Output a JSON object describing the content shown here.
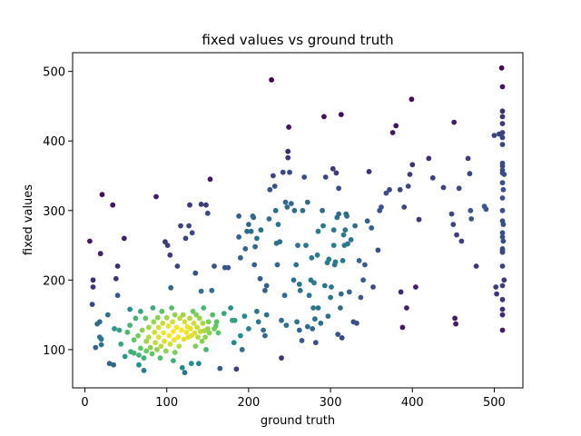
{
  "chart_data": {
    "type": "scatter",
    "title": "fixed values vs ground truth",
    "xlabel": "ground truth",
    "ylabel": "fixed values",
    "xlim": [
      -15,
      535
    ],
    "ylim": [
      45,
      527
    ],
    "xticks": [
      0,
      100,
      200,
      300,
      400,
      500
    ],
    "yticks": [
      100,
      200,
      300,
      400,
      500
    ],
    "grid": false,
    "colormap": "viridis",
    "colormap_stops": [
      "#440154",
      "#3b528b",
      "#21918c",
      "#5ec962",
      "#fde725"
    ],
    "color_encoding": "point density",
    "points": [
      [
        6,
        256
      ],
      [
        10,
        200
      ],
      [
        10,
        190
      ],
      [
        9,
        165
      ],
      [
        13,
        103
      ],
      [
        15,
        137
      ],
      [
        18,
        140
      ],
      [
        18,
        118
      ],
      [
        20,
        115
      ],
      [
        20,
        107
      ],
      [
        21,
        323
      ],
      [
        19,
        238
      ],
      [
        28,
        150
      ],
      [
        30,
        80
      ],
      [
        34,
        308
      ],
      [
        35,
        78
      ],
      [
        36,
        130
      ],
      [
        38,
        202
      ],
      [
        40,
        220
      ],
      [
        40,
        178
      ],
      [
        42,
        128
      ],
      [
        44,
        108
      ],
      [
        48,
        260
      ],
      [
        49,
        90
      ],
      [
        52,
        125
      ],
      [
        55,
        158
      ],
      [
        55,
        135
      ],
      [
        56,
        97
      ],
      [
        60,
        114
      ],
      [
        60,
        95
      ],
      [
        62,
        145
      ],
      [
        65,
        120
      ],
      [
        66,
        92
      ],
      [
        66,
        78
      ],
      [
        68,
        102
      ],
      [
        68,
        155
      ],
      [
        70,
        128
      ],
      [
        72,
        70
      ],
      [
        72,
        88
      ],
      [
        74,
        145
      ],
      [
        75,
        112
      ],
      [
        75,
        98
      ],
      [
        78,
        132
      ],
      [
        78,
        118
      ],
      [
        80,
        103
      ],
      [
        82,
        94
      ],
      [
        83,
        160
      ],
      [
        84,
        140
      ],
      [
        85,
        125
      ],
      [
        86,
        110
      ],
      [
        87,
        320
      ],
      [
        88,
        100
      ],
      [
        89,
        146
      ],
      [
        90,
        132
      ],
      [
        90,
        118
      ],
      [
        92,
        88
      ],
      [
        93,
        105
      ],
      [
        94,
        155
      ],
      [
        95,
        138
      ],
      [
        96,
        124
      ],
      [
        97,
        112
      ],
      [
        98,
        255
      ],
      [
        99,
        98
      ],
      [
        100,
        146
      ],
      [
        101,
        250
      ],
      [
        102,
        134
      ],
      [
        103,
        120
      ],
      [
        104,
        236
      ],
      [
        104,
        108
      ],
      [
        105,
        189
      ],
      [
        106,
        160
      ],
      [
        107,
        140
      ],
      [
        108,
        126
      ],
      [
        108,
        84
      ],
      [
        109,
        114
      ],
      [
        110,
        150
      ],
      [
        110,
        96
      ],
      [
        112,
        132
      ],
      [
        113,
        220
      ],
      [
        114,
        118
      ],
      [
        115,
        105
      ],
      [
        116,
        145
      ],
      [
        117,
        278
      ],
      [
        118,
        128
      ],
      [
        119,
        74
      ],
      [
        120,
        150
      ],
      [
        121,
        115
      ],
      [
        122,
        140
      ],
      [
        122,
        67
      ],
      [
        123,
        260
      ],
      [
        124,
        125
      ],
      [
        125,
        133
      ],
      [
        126,
        118
      ],
      [
        127,
        278
      ],
      [
        128,
        145
      ],
      [
        128,
        308
      ],
      [
        129,
        130
      ],
      [
        130,
        120
      ],
      [
        130,
        80
      ],
      [
        131,
        268
      ],
      [
        132,
        155
      ],
      [
        133,
        138
      ],
      [
        134,
        124
      ],
      [
        135,
        210
      ],
      [
        135,
        105
      ],
      [
        136,
        150
      ],
      [
        137,
        132
      ],
      [
        138,
        118
      ],
      [
        139,
        80
      ],
      [
        140,
        145
      ],
      [
        141,
        126
      ],
      [
        142,
        309
      ],
      [
        142,
        184
      ],
      [
        143,
        112
      ],
      [
        144,
        138
      ],
      [
        145,
        160
      ],
      [
        146,
        127
      ],
      [
        147,
        118
      ],
      [
        148,
        100
      ],
      [
        148,
        308
      ],
      [
        150,
        296
      ],
      [
        150,
        130
      ],
      [
        151,
        140
      ],
      [
        152,
        124
      ],
      [
        153,
        345
      ],
      [
        155,
        185
      ],
      [
        156,
        150
      ],
      [
        158,
        220
      ],
      [
        158,
        130
      ],
      [
        160,
        134
      ],
      [
        161,
        140
      ],
      [
        163,
        124
      ],
      [
        165,
        73
      ],
      [
        170,
        152
      ],
      [
        171,
        218
      ],
      [
        175,
        218
      ],
      [
        178,
        160
      ],
      [
        180,
        142
      ],
      [
        182,
        110
      ],
      [
        183,
        142
      ],
      [
        185,
        72
      ],
      [
        188,
        262
      ],
      [
        188,
        292
      ],
      [
        190,
        232
      ],
      [
        190,
        120
      ],
      [
        192,
        100
      ],
      [
        195,
        148
      ],
      [
        196,
        245
      ],
      [
        198,
        270
      ],
      [
        200,
        280
      ],
      [
        200,
        130
      ],
      [
        203,
        270
      ],
      [
        205,
        292
      ],
      [
        206,
        290
      ],
      [
        207,
        222
      ],
      [
        208,
        248
      ],
      [
        210,
        155
      ],
      [
        210,
        260
      ],
      [
        212,
        140
      ],
      [
        214,
        202
      ],
      [
        215,
        272
      ],
      [
        218,
        128
      ],
      [
        220,
        185
      ],
      [
        220,
        120
      ],
      [
        222,
        192
      ],
      [
        222,
        150
      ],
      [
        225,
        288
      ],
      [
        226,
        330
      ],
      [
        228,
        488
      ],
      [
        230,
        350
      ],
      [
        232,
        335
      ],
      [
        233,
        300
      ],
      [
        234,
        253
      ],
      [
        235,
        222
      ],
      [
        236,
        280
      ],
      [
        238,
        255
      ],
      [
        240,
        142
      ],
      [
        240,
        88
      ],
      [
        242,
        355
      ],
      [
        244,
        178
      ],
      [
        245,
        312
      ],
      [
        246,
        135
      ],
      [
        247,
        305
      ],
      [
        248,
        385
      ],
      [
        248,
        376
      ],
      [
        249,
        420
      ],
      [
        250,
        355
      ],
      [
        252,
        310
      ],
      [
        255,
        200
      ],
      [
        256,
        300
      ],
      [
        258,
        222
      ],
      [
        259,
        140
      ],
      [
        260,
        250
      ],
      [
        262,
        128
      ],
      [
        262,
        194
      ],
      [
        263,
        185
      ],
      [
        265,
        113
      ],
      [
        266,
        300
      ],
      [
        268,
        348
      ],
      [
        270,
        250
      ],
      [
        272,
        133
      ],
      [
        272,
        312
      ],
      [
        274,
        178
      ],
      [
        276,
        200
      ],
      [
        277,
        232
      ],
      [
        278,
        130
      ],
      [
        279,
        160
      ],
      [
        280,
        196
      ],
      [
        281,
        144
      ],
      [
        282,
        110
      ],
      [
        284,
        236
      ],
      [
        285,
        160
      ],
      [
        285,
        270
      ],
      [
        288,
        138
      ],
      [
        290,
        300
      ],
      [
        291,
        278
      ],
      [
        292,
        435
      ],
      [
        293,
        192
      ],
      [
        294,
        348
      ],
      [
        296,
        225
      ],
      [
        297,
        148
      ],
      [
        298,
        230
      ],
      [
        300,
        175
      ],
      [
        301,
        190
      ],
      [
        303,
        360
      ],
      [
        304,
        250
      ],
      [
        304,
        272
      ],
      [
        305,
        222
      ],
      [
        306,
        226
      ],
      [
        307,
        354
      ],
      [
        308,
        290
      ],
      [
        309,
        122
      ],
      [
        310,
        295
      ],
      [
        310,
        332
      ],
      [
        312,
        160
      ],
      [
        313,
        438
      ],
      [
        313,
        180
      ],
      [
        314,
        117
      ],
      [
        315,
        228
      ],
      [
        316,
        265
      ],
      [
        317,
        250
      ],
      [
        318,
        272
      ],
      [
        319,
        295
      ],
      [
        320,
        292
      ],
      [
        321,
        252
      ],
      [
        323,
        183
      ],
      [
        325,
        258
      ],
      [
        328,
        140
      ],
      [
        330,
        278
      ],
      [
        332,
        138
      ],
      [
        335,
        228
      ],
      [
        337,
        175
      ],
      [
        340,
        200
      ],
      [
        342,
        222
      ],
      [
        345,
        285
      ],
      [
        347,
        356
      ],
      [
        350,
        275
      ],
      [
        352,
        190
      ],
      [
        358,
        243
      ],
      [
        360,
        300
      ],
      [
        362,
        305
      ],
      [
        368,
        325
      ],
      [
        372,
        330
      ],
      [
        376,
        412
      ],
      [
        380,
        422
      ],
      [
        385,
        330
      ],
      [
        386,
        183
      ],
      [
        390,
        305
      ],
      [
        388,
        132
      ],
      [
        393,
        160
      ],
      [
        395,
        335
      ],
      [
        397,
        352
      ],
      [
        399,
        460
      ],
      [
        400,
        366
      ],
      [
        404,
        190
      ],
      [
        408,
        287
      ],
      [
        420,
        375
      ],
      [
        425,
        347
      ],
      [
        438,
        333
      ],
      [
        448,
        295
      ],
      [
        450,
        280
      ],
      [
        451,
        427
      ],
      [
        452,
        145
      ],
      [
        453,
        137
      ],
      [
        454,
        265
      ],
      [
        457,
        332
      ],
      [
        460,
        256
      ],
      [
        468,
        375
      ],
      [
        470,
        353
      ],
      [
        471,
        300
      ],
      [
        472,
        288
      ],
      [
        478,
        220
      ],
      [
        488,
        306
      ],
      [
        490,
        302
      ],
      [
        500,
        408
      ],
      [
        502,
        190
      ],
      [
        503,
        180
      ],
      [
        506,
        410
      ],
      [
        509,
        505
      ],
      [
        510,
        478
      ],
      [
        510,
        443
      ],
      [
        510,
        435
      ],
      [
        510,
        425
      ],
      [
        510,
        412
      ],
      [
        510,
        405
      ],
      [
        510,
        395
      ],
      [
        510,
        368
      ],
      [
        510,
        364
      ],
      [
        510,
        358
      ],
      [
        510,
        354
      ],
      [
        510,
        340
      ],
      [
        510,
        318
      ],
      [
        510,
        300
      ],
      [
        510,
        285
      ],
      [
        510,
        268
      ],
      [
        510,
        262
      ],
      [
        510,
        245
      ],
      [
        510,
        242
      ],
      [
        510,
        240
      ],
      [
        510,
        220
      ],
      [
        510,
        192
      ],
      [
        510,
        172
      ],
      [
        510,
        158
      ],
      [
        510,
        150
      ],
      [
        510,
        128
      ],
      [
        511,
        330
      ],
      [
        511,
        280
      ],
      [
        511,
        256
      ],
      [
        512,
        352
      ],
      [
        512,
        200
      ]
    ]
  }
}
